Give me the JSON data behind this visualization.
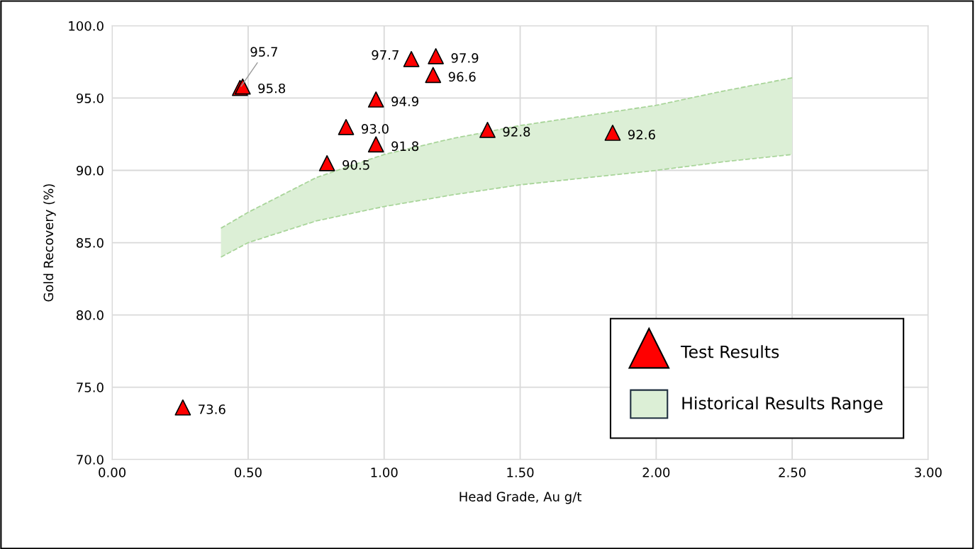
{
  "chart_data": {
    "type": "scatter",
    "xlabel": "Head Grade, Au g/t",
    "ylabel": "Gold Recovery (%)",
    "xlim": [
      0,
      3
    ],
    "xticks": [
      {
        "value": 0,
        "label": "0.00"
      },
      {
        "value": 0.5,
        "label": "0.50"
      },
      {
        "value": 1,
        "label": "1.00"
      },
      {
        "value": 1.5,
        "label": "1.50"
      },
      {
        "value": 2,
        "label": "2.00"
      },
      {
        "value": 2.5,
        "label": "2.50"
      },
      {
        "value": 3,
        "label": "3.00"
      }
    ],
    "ylim": [
      70,
      100
    ],
    "yticks": [
      {
        "value": 70,
        "label": "70.0"
      },
      {
        "value": 75,
        "label": "75.0"
      },
      {
        "value": 80,
        "label": "80.0"
      },
      {
        "value": 85,
        "label": "85.0"
      },
      {
        "value": 90,
        "label": "90.0"
      },
      {
        "value": 95,
        "label": "95.0"
      },
      {
        "value": 100,
        "label": "100.0"
      }
    ],
    "grid": true,
    "legend": "bottom right",
    "series": [
      {
        "type": "line",
        "color": "#a9d59a",
        "line_style": "dashed",
        "x": [
          0.4,
          0.5,
          0.75,
          1.0,
          1.25,
          1.5,
          1.75,
          2.0,
          2.25,
          2.5
        ],
        "values": [
          84.0,
          85.0,
          86.5,
          87.5,
          88.3,
          89.0,
          89.5,
          90.0,
          90.6,
          91.1
        ]
      },
      {
        "type": "area",
        "name": "Historical Results Range",
        "color": "#dcefd6",
        "line_style": "dashed",
        "x": [
          0.4,
          0.5,
          0.75,
          1.0,
          1.25,
          1.5,
          1.75,
          2.0,
          2.25,
          2.5
        ],
        "values": [
          86.0,
          87.1,
          89.5,
          91.1,
          92.2,
          93.1,
          93.8,
          94.5,
          95.5,
          96.4
        ]
      },
      {
        "name": "Test Results",
        "marker": "triangle",
        "value_labels": [
          "73.6",
          "95.7",
          "95.8",
          "90.5",
          "93.0",
          "94.9",
          "91.8",
          "97.7",
          "97.9",
          "96.6",
          "92.8",
          "92.6"
        ],
        "color": "#ff0000",
        "x": [
          0.26,
          0.47,
          0.48,
          0.79,
          0.86,
          0.97,
          0.97,
          1.1,
          1.19,
          1.18,
          1.38,
          1.84
        ],
        "values": [
          73.6,
          95.7,
          95.8,
          90.5,
          93.0,
          94.9,
          91.8,
          97.7,
          97.9,
          96.6,
          92.8,
          92.6
        ]
      }
    ]
  }
}
